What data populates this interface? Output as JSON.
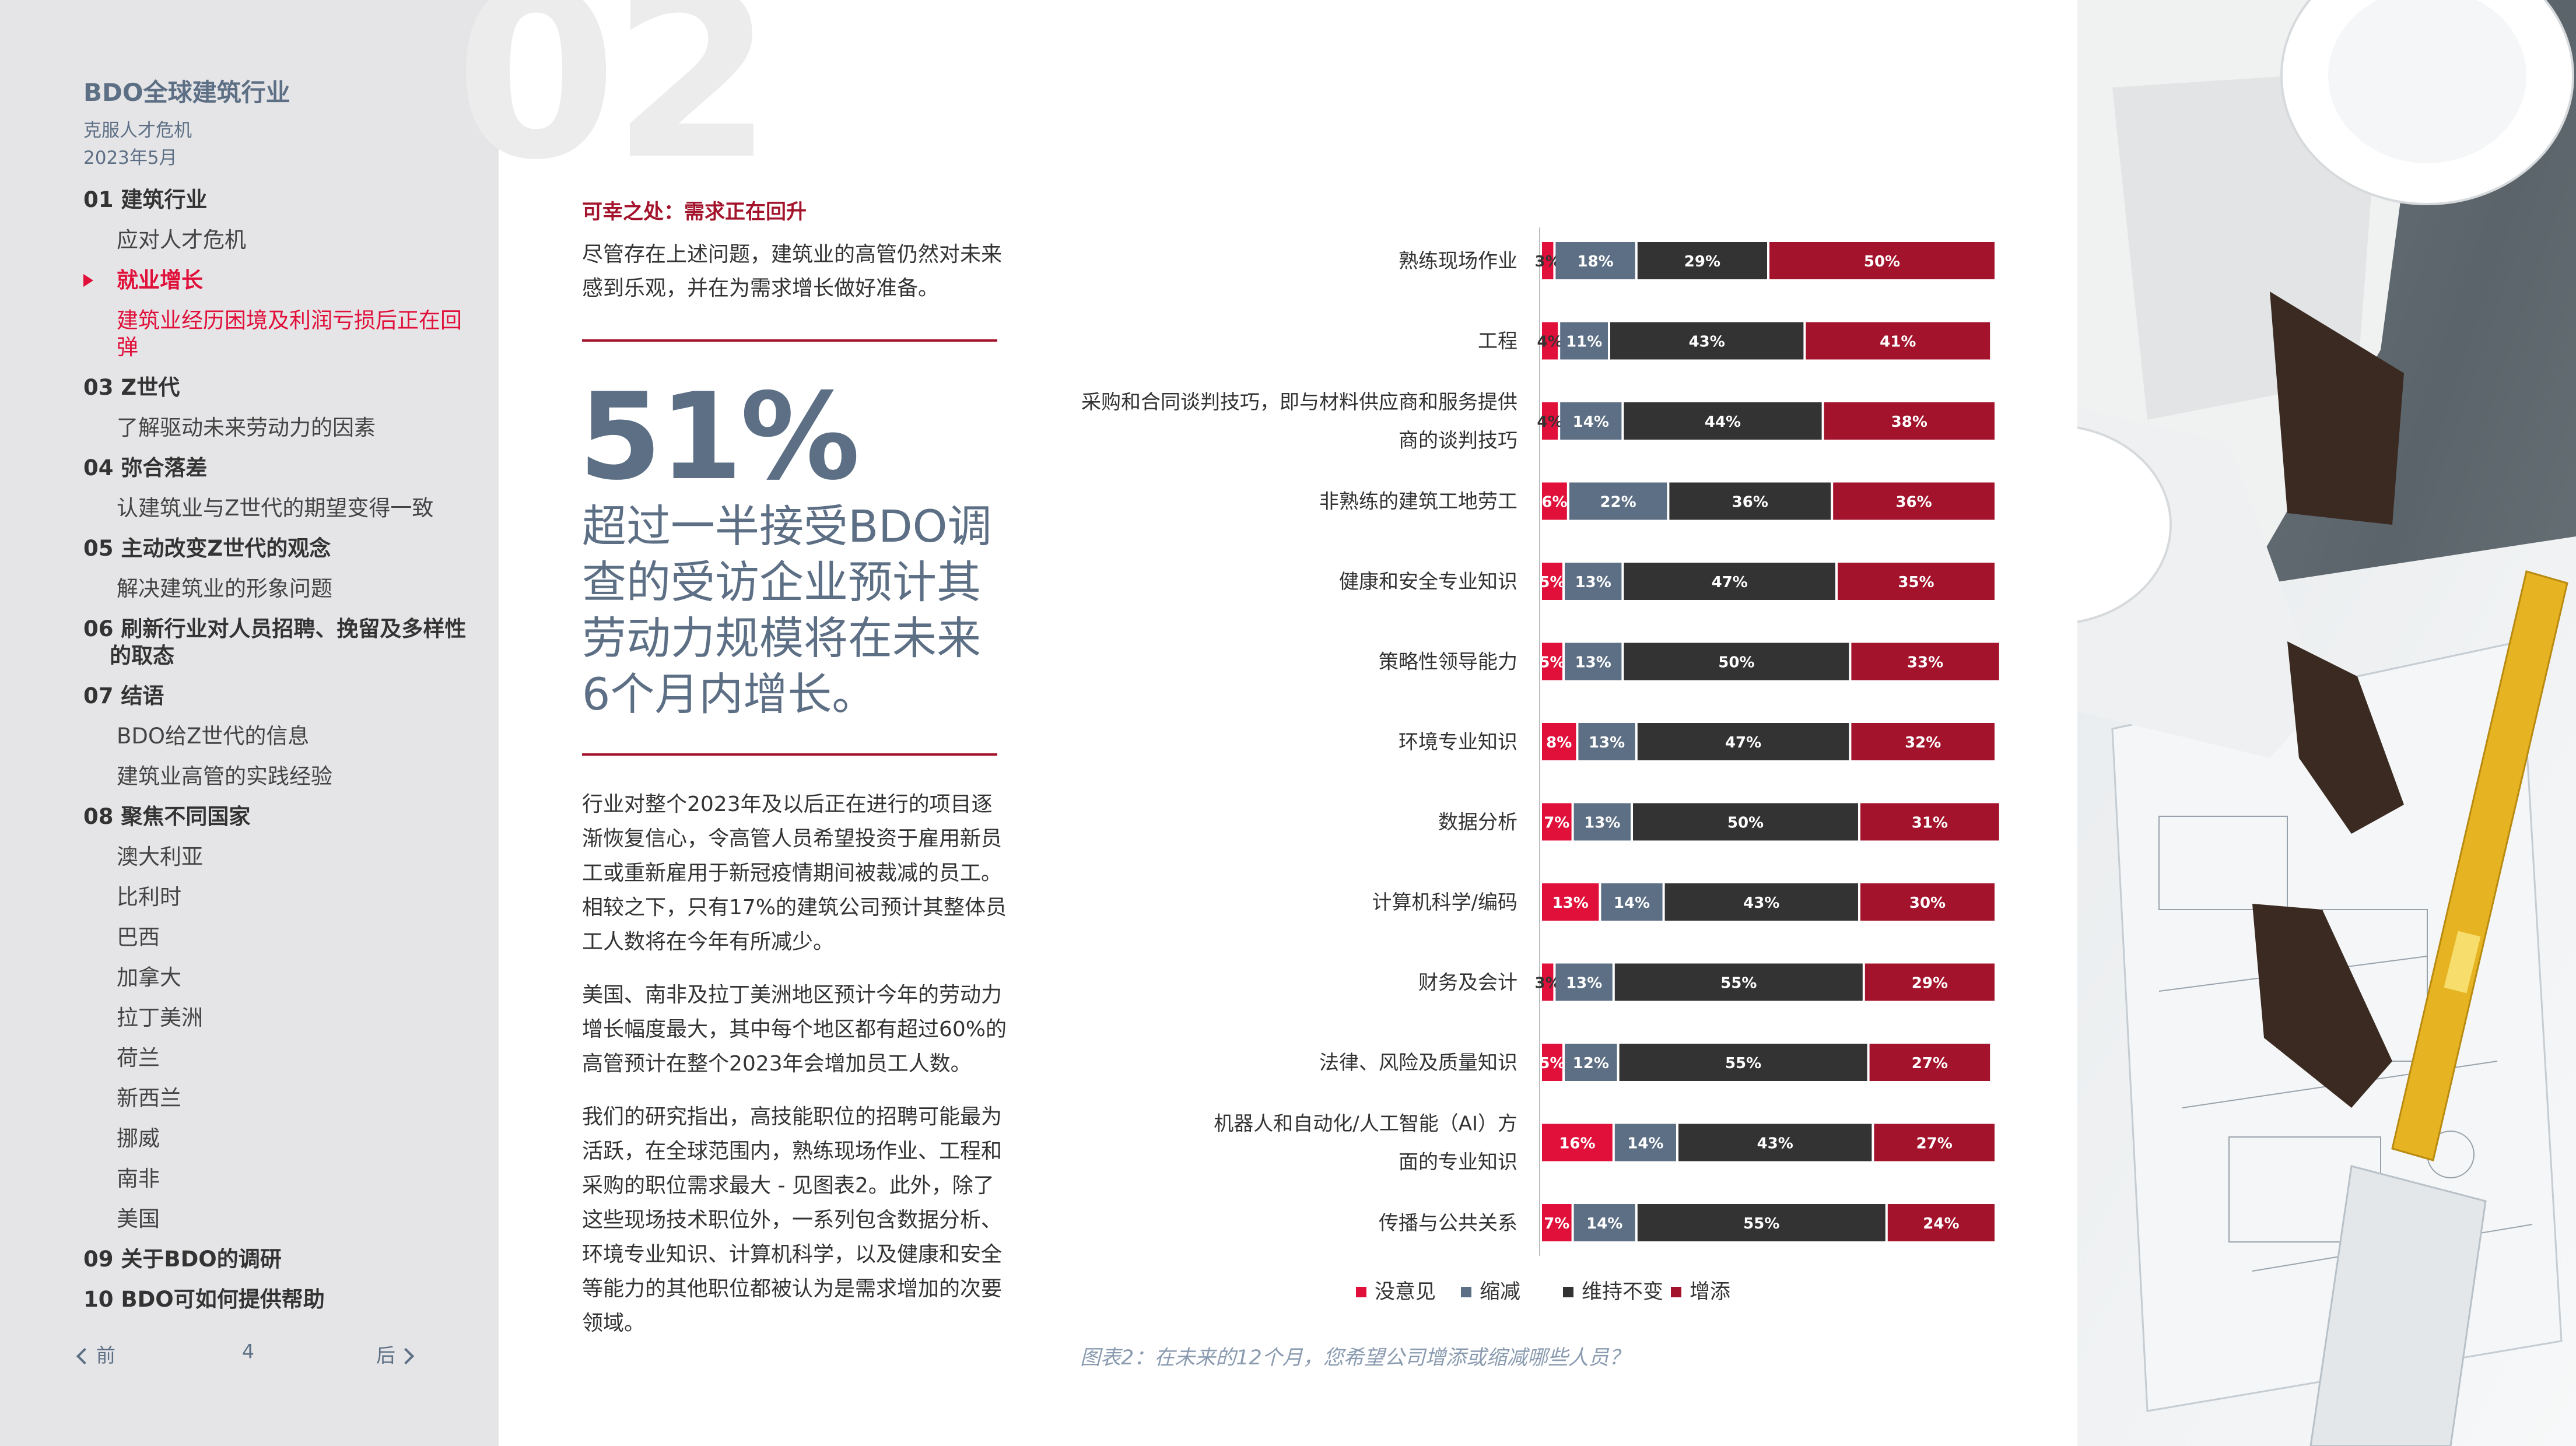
{
  "sidebar": {
    "brand": "BDO全球建筑行业",
    "subtitle": "克服人才危机",
    "date": "2023年5月",
    "toc": [
      {
        "label": "01 建筑行业",
        "level": "main"
      },
      {
        "label": "应对人才危机",
        "level": "sub"
      },
      {
        "label": "就业增长",
        "level": "main",
        "active": true
      },
      {
        "label": "建筑业经历困境及利润亏损后正在回弹",
        "level": "sub",
        "active": true
      },
      {
        "label": "03 Z世代",
        "level": "main"
      },
      {
        "label": "了解驱动未来劳动力的因素",
        "level": "sub"
      },
      {
        "label": "04 弥合落差",
        "level": "main"
      },
      {
        "label": "认建筑业与Z世代的期望变得一致",
        "level": "sub"
      },
      {
        "label": "05 主动改变Z世代的观念",
        "level": "main"
      },
      {
        "label": "解决建筑业的形象问题",
        "level": "sub"
      },
      {
        "label": "06 刷新行业对人员招聘、挽留及多样性的取态",
        "level": "main"
      },
      {
        "label": "07 结语",
        "level": "main"
      },
      {
        "label": "BDO给Z世代的信息",
        "level": "sub"
      },
      {
        "label": "建筑业高管的实践经验",
        "level": "sub"
      },
      {
        "label": "08 聚焦不同国家",
        "level": "main"
      },
      {
        "label": "澳大利亚",
        "level": "sub"
      },
      {
        "label": "比利时",
        "level": "sub"
      },
      {
        "label": "巴西",
        "level": "sub"
      },
      {
        "label": "加拿大",
        "level": "sub"
      },
      {
        "label": "拉丁美洲",
        "level": "sub"
      },
      {
        "label": "荷兰",
        "level": "sub"
      },
      {
        "label": "新西兰",
        "level": "sub"
      },
      {
        "label": "挪威",
        "level": "sub"
      },
      {
        "label": "南非",
        "level": "sub"
      },
      {
        "label": "美国",
        "level": "sub"
      },
      {
        "label": "09 关于BDO的调研",
        "level": "main"
      },
      {
        "label": "10 BDO可如何提供帮助",
        "level": "main"
      }
    ],
    "pager": {
      "prev": "前",
      "page": "4",
      "next": "后"
    }
  },
  "main": {
    "section_number": "02",
    "subhead": "可幸之处：需求正在回升",
    "intro": "尽管存在上述问题，建筑业的高管仍然对未来感到乐观，并在为需求增长做好准备。",
    "stat_value": "51%",
    "stat_text": "超过一半接受BDO调查的受访企业预计其劳动力规模将在未来6个月内增长。",
    "paragraphs": [
      "行业对整个2023年及以后正在进行的项目逐渐恢复信心，令高管人员希望投资于雇用新员工或重新雇用于新冠疫情期间被裁减的员工。相较之下，只有17%的建筑公司预计其整体员工人数将在今年有所减少。",
      "美国、南非及拉丁美洲地区预计今年的劳动力增长幅度最大，其中每个地区都有超过60%的高管预计在整个2023年会增加员工人数。",
      "我们的研究指出，高技能职位的招聘可能最为活跃，在全球范围内，熟练现场作业、工程和采购的职位需求最大 - 见图表2。此外，除了这些现场技术职位外，一系列包含数据分析、环境专业知识、计算机科学，以及健康和安全等能力的其他职位都被认为是需求增加的次要领域。"
    ],
    "caption": "图表2：在未来的12个月，您希望公司增添或缩减哪些人员？"
  },
  "colors": {
    "none": "#e0103a",
    "reduce": "#5d6f85",
    "keep": "#333333",
    "add": "#a3132b"
  },
  "chart_data": {
    "type": "bar",
    "orientation": "horizontal-stacked-100",
    "categories": [
      "熟练现场作业",
      "工程",
      "采购和合同谈判技巧，即与材料供应商和服务提供商的谈判技巧",
      "非熟练的建筑工地劳工",
      "健康和安全专业知识",
      "策略性领导能力",
      "环境专业知识",
      "数据分析",
      "计算机科学/编码",
      "财务及会计",
      "法律、风险及质量知识",
      "机器人和自动化/人工智能（AI）方面的专业知识",
      "传播与公共关系"
    ],
    "series": [
      {
        "name": "没意见",
        "color": "#e0103a",
        "values": [
          3,
          4,
          4,
          6,
          5,
          5,
          8,
          7,
          13,
          3,
          5,
          16,
          7
        ]
      },
      {
        "name": "缩减",
        "color": "#5d6f85",
        "values": [
          18,
          11,
          14,
          22,
          13,
          13,
          13,
          13,
          14,
          13,
          12,
          14,
          14
        ]
      },
      {
        "name": "维持不变",
        "color": "#333333",
        "values": [
          29,
          43,
          44,
          36,
          47,
          50,
          47,
          50,
          43,
          55,
          55,
          43,
          55
        ]
      },
      {
        "name": "增添",
        "color": "#a3132b",
        "values": [
          50,
          41,
          38,
          36,
          35,
          33,
          32,
          31,
          30,
          29,
          27,
          27,
          24
        ]
      }
    ],
    "value_suffix": "%",
    "legend_position": "bottom"
  }
}
